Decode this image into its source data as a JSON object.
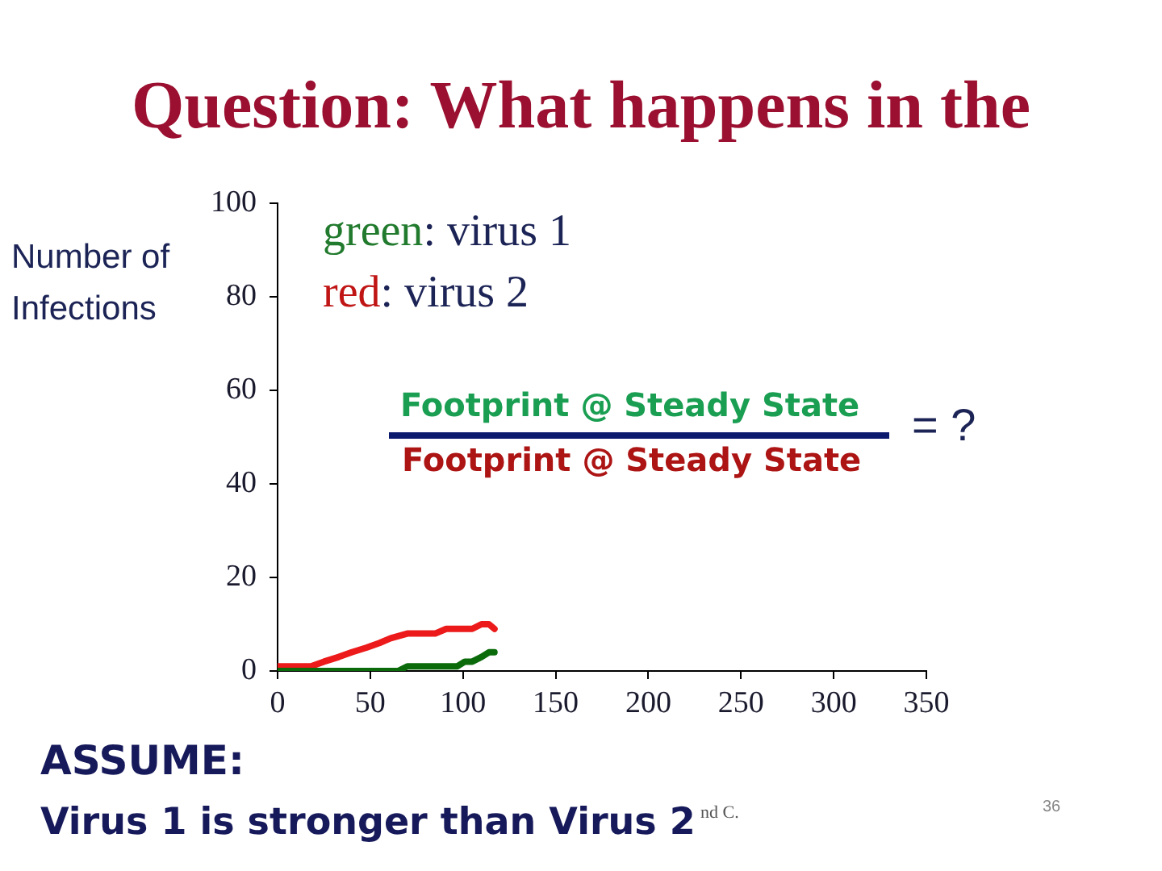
{
  "chart_data": {
    "type": "line",
    "title": "Question: What happens in the",
    "ylabel": "Number of Infections",
    "series": [
      {
        "color": "#0b6b0b",
        "x": [
          0,
          30,
          65,
          70,
          97,
          101,
          105,
          110,
          114,
          117
        ],
        "values": [
          0,
          0,
          0,
          1,
          1,
          2,
          2,
          3,
          4,
          4
        ]
      },
      {
        "color": "#ec1a1a",
        "x": [
          0,
          10,
          18,
          25,
          33,
          40,
          48,
          55,
          61,
          70,
          77,
          85,
          91,
          98,
          105,
          110,
          114,
          117
        ],
        "values": [
          1,
          1,
          1,
          2,
          3,
          4,
          5,
          6,
          7,
          8,
          8,
          8,
          9,
          9,
          9,
          10,
          10,
          9
        ]
      }
    ],
    "xlim": [
      0,
      350
    ],
    "xticks": [
      0,
      50,
      100,
      150,
      200,
      250,
      300,
      350
    ],
    "ylim": [
      0,
      100
    ],
    "yticks": [
      0,
      20,
      40,
      60,
      80,
      100
    ],
    "grid": false,
    "legend": false,
    "annotations": [
      "green: virus 1",
      "red: virus 2",
      "Footprint @ Steady State",
      "Footprint @ Steady State",
      "= ?",
      "ASSUME:",
      "Virus 1 is stronger than Virus 2",
      "nd C.",
      "36"
    ]
  }
}
